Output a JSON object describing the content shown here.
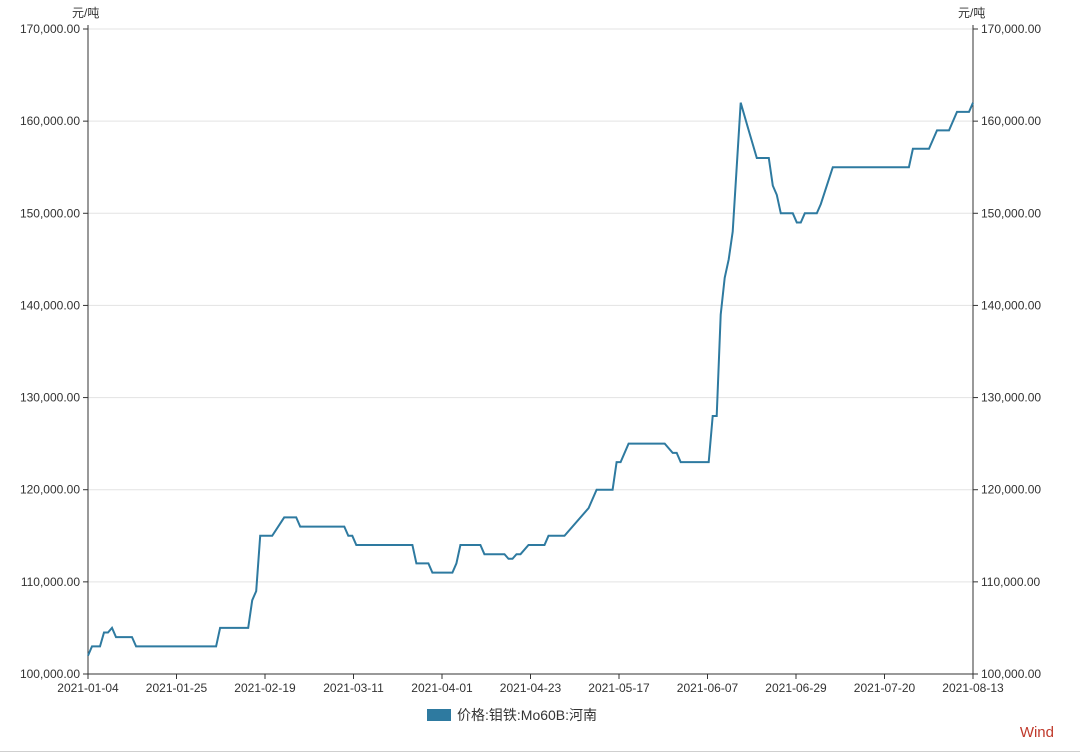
{
  "chart_data": {
    "type": "line",
    "y_unit_left": "元/吨",
    "y_unit_right": "元/吨",
    "ylim": [
      100000,
      170000
    ],
    "y_ticks": [
      100000,
      110000,
      120000,
      130000,
      140000,
      150000,
      160000,
      170000
    ],
    "y_tick_labels": [
      "100,000.00",
      "110,000.00",
      "120,000.00",
      "130,000.00",
      "140,000.00",
      "150,000.00",
      "160,000.00",
      "170,000.00"
    ],
    "x_start": "2021-01-04",
    "x_end": "2021-08-13",
    "x_tick_labels": [
      "2021-01-04",
      "2021-01-25",
      "2021-02-19",
      "2021-03-11",
      "2021-04-01",
      "2021-04-23",
      "2021-05-17",
      "2021-06-07",
      "2021-06-29",
      "2021-07-20",
      "2021-08-13"
    ],
    "grid": true,
    "legend_position": "bottom-center",
    "series": [
      {
        "name": "价格:钼铁:Mo60B:河南",
        "color": "#2e7aa0",
        "points": [
          [
            "2021-01-04",
            102000
          ],
          [
            "2021-01-05",
            103000
          ],
          [
            "2021-01-07",
            103000
          ],
          [
            "2021-01-08",
            104500
          ],
          [
            "2021-01-09",
            104500
          ],
          [
            "2021-01-10",
            105000
          ],
          [
            "2021-01-11",
            104000
          ],
          [
            "2021-01-15",
            104000
          ],
          [
            "2021-01-16",
            103000
          ],
          [
            "2021-02-05",
            103000
          ],
          [
            "2021-02-06",
            105000
          ],
          [
            "2021-02-13",
            105000
          ],
          [
            "2021-02-14",
            108000
          ],
          [
            "2021-02-15",
            109000
          ],
          [
            "2021-02-16",
            115000
          ],
          [
            "2021-02-19",
            115000
          ],
          [
            "2021-02-22",
            117000
          ],
          [
            "2021-02-25",
            117000
          ],
          [
            "2021-02-26",
            116000
          ],
          [
            "2021-03-09",
            116000
          ],
          [
            "2021-03-10",
            115000
          ],
          [
            "2021-03-11",
            115000
          ],
          [
            "2021-03-12",
            114000
          ],
          [
            "2021-03-26",
            114000
          ],
          [
            "2021-03-27",
            112000
          ],
          [
            "2021-03-30",
            112000
          ],
          [
            "2021-03-31",
            111000
          ],
          [
            "2021-04-05",
            111000
          ],
          [
            "2021-04-06",
            112000
          ],
          [
            "2021-04-07",
            114000
          ],
          [
            "2021-04-12",
            114000
          ],
          [
            "2021-04-13",
            113000
          ],
          [
            "2021-04-18",
            113000
          ],
          [
            "2021-04-19",
            112500
          ],
          [
            "2021-04-20",
            112500
          ],
          [
            "2021-04-21",
            113000
          ],
          [
            "2021-04-22",
            113000
          ],
          [
            "2021-04-24",
            114000
          ],
          [
            "2021-04-28",
            114000
          ],
          [
            "2021-04-29",
            115000
          ],
          [
            "2021-05-03",
            115000
          ],
          [
            "2021-05-09",
            118000
          ],
          [
            "2021-05-11",
            120000
          ],
          [
            "2021-05-15",
            120000
          ],
          [
            "2021-05-16",
            123000
          ],
          [
            "2021-05-17",
            123000
          ],
          [
            "2021-05-19",
            125000
          ],
          [
            "2021-05-28",
            125000
          ],
          [
            "2021-05-30",
            124000
          ],
          [
            "2021-05-31",
            124000
          ],
          [
            "2021-06-01",
            123000
          ],
          [
            "2021-06-08",
            123000
          ],
          [
            "2021-06-09",
            128000
          ],
          [
            "2021-06-10",
            128000
          ],
          [
            "2021-06-11",
            139000
          ],
          [
            "2021-06-12",
            143000
          ],
          [
            "2021-06-13",
            145000
          ],
          [
            "2021-06-14",
            148000
          ],
          [
            "2021-06-16",
            162000
          ],
          [
            "2021-06-18",
            159000
          ],
          [
            "2021-06-20",
            156000
          ],
          [
            "2021-06-23",
            156000
          ],
          [
            "2021-06-24",
            153000
          ],
          [
            "2021-06-25",
            152000
          ],
          [
            "2021-06-26",
            150000
          ],
          [
            "2021-06-29",
            150000
          ],
          [
            "2021-06-30",
            149000
          ],
          [
            "2021-07-01",
            149000
          ],
          [
            "2021-07-02",
            150000
          ],
          [
            "2021-07-05",
            150000
          ],
          [
            "2021-07-06",
            151000
          ],
          [
            "2021-07-09",
            155000
          ],
          [
            "2021-07-28",
            155000
          ],
          [
            "2021-07-29",
            157000
          ],
          [
            "2021-08-02",
            157000
          ],
          [
            "2021-08-04",
            159000
          ],
          [
            "2021-08-07",
            159000
          ],
          [
            "2021-08-09",
            161000
          ],
          [
            "2021-08-12",
            161000
          ],
          [
            "2021-08-13",
            162000
          ]
        ]
      }
    ]
  },
  "brand": "Wind"
}
